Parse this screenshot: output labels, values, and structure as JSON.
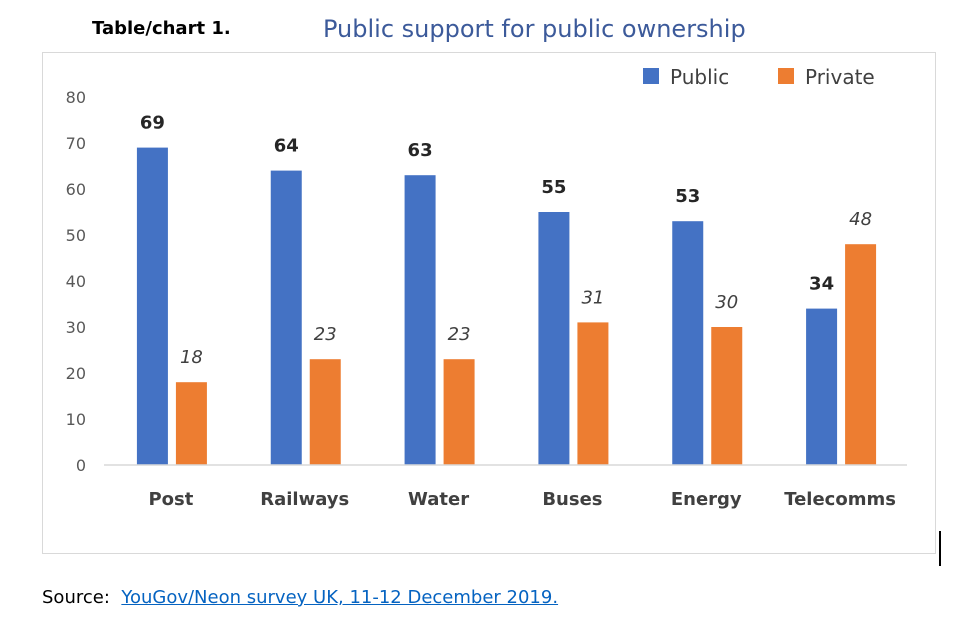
{
  "header": {
    "label": "Table/chart 1."
  },
  "source": {
    "prefix": "Source:",
    "link_text": "YouGov/Neon survey UK, 11-12 December 2019."
  },
  "colors": {
    "public": "#4472c4",
    "private": "#ed7d31",
    "axis": "#d9d9d9"
  },
  "chart_data": {
    "type": "bar",
    "title": "Public support for public ownership",
    "categories": [
      "Post",
      "Railways",
      "Water",
      "Buses",
      "Energy",
      "Telecomms"
    ],
    "series": [
      {
        "name": "Public",
        "values": [
          69,
          64,
          63,
          55,
          53,
          34
        ]
      },
      {
        "name": "Private",
        "values": [
          18,
          23,
          23,
          31,
          30,
          48
        ]
      }
    ],
    "ylim": [
      0,
      80
    ],
    "yticks": [
      0,
      10,
      20,
      30,
      40,
      50,
      60,
      70,
      80
    ],
    "xlabel": "",
    "ylabel": "",
    "legend": "top-right",
    "grid": false
  }
}
